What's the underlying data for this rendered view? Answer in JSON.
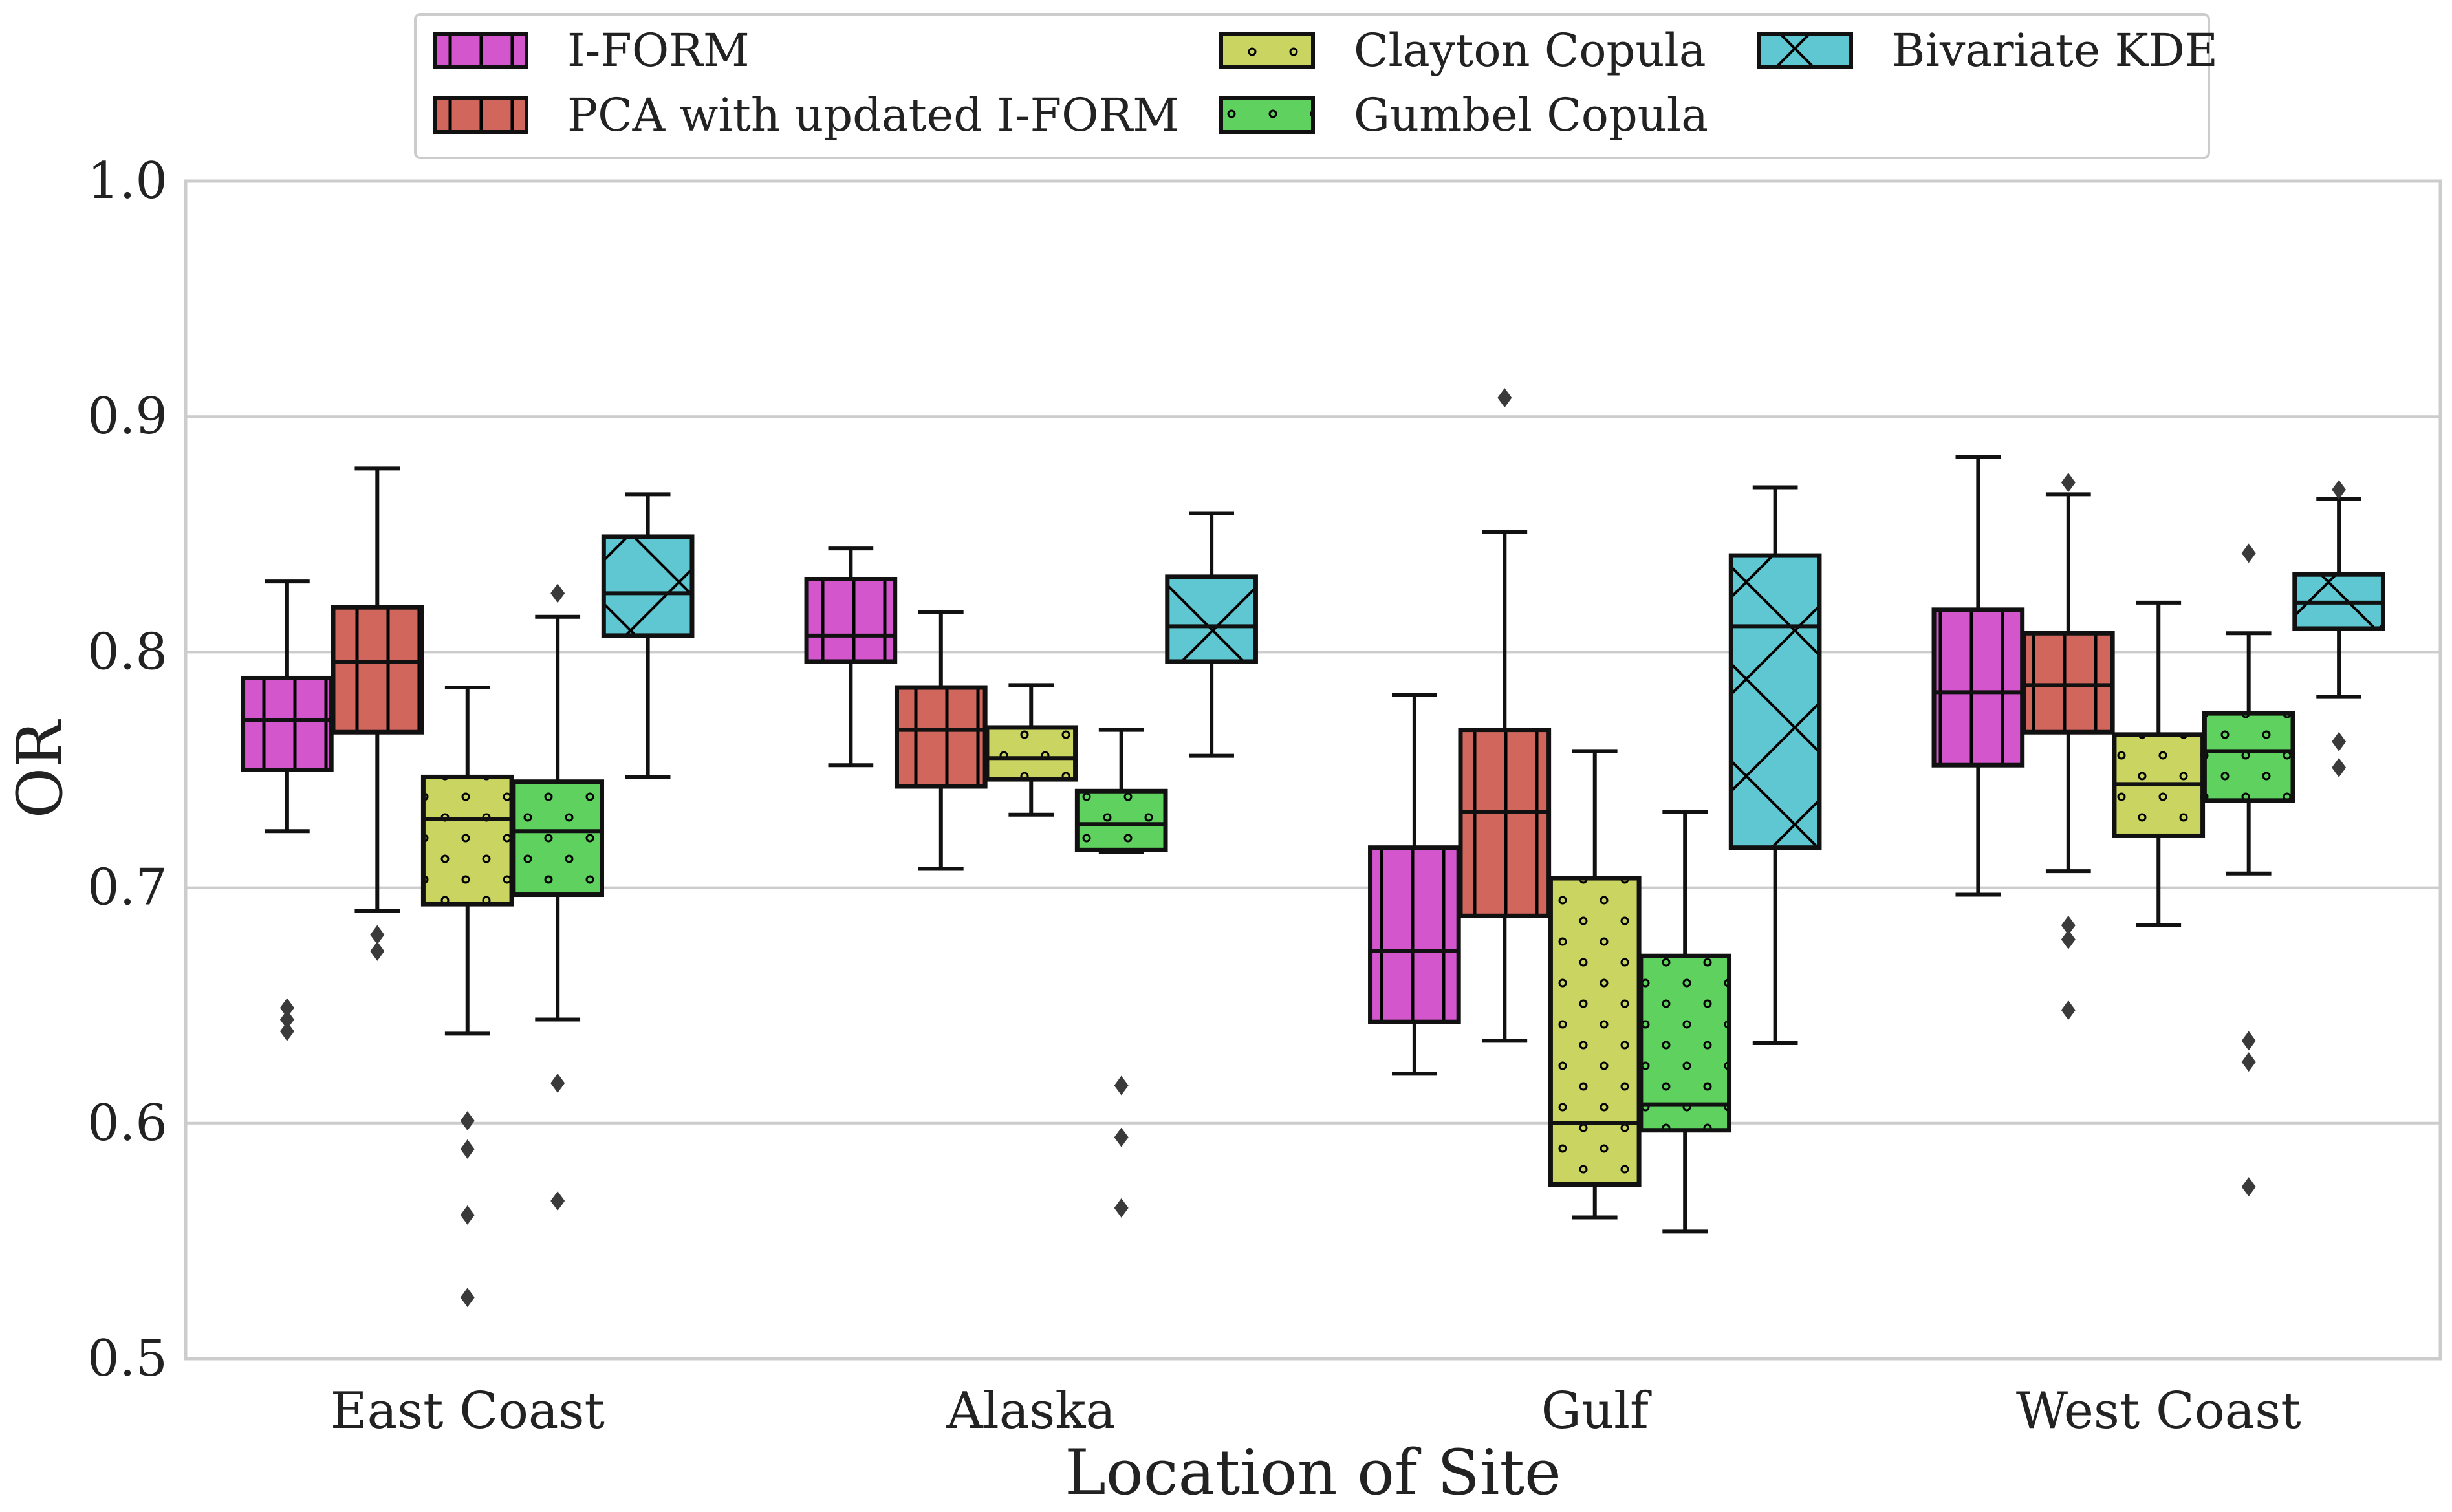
{
  "chart_data": {
    "type": "box",
    "title": "",
    "xlabel": "Location of Site",
    "ylabel": "OR",
    "ylim": [
      0.5,
      1.0
    ],
    "yticks": [
      "0.5",
      "0.6",
      "0.7",
      "0.8",
      "0.9",
      "1.0"
    ],
    "categories": [
      "East Coast",
      "Alaska",
      "Gulf",
      "West Coast"
    ],
    "grid": "horizontal",
    "legend_position": "top-center",
    "series": [
      {
        "name": "I-FORM",
        "color": "#d456cc",
        "hatch": "vertical-lines",
        "boxes": [
          {
            "whislo": 0.724,
            "q1": 0.75,
            "med": 0.771,
            "q3": 0.789,
            "whishi": 0.83,
            "fliers": [
              0.649,
              0.644,
              0.639
            ]
          },
          {
            "whislo": 0.752,
            "q1": 0.796,
            "med": 0.807,
            "q3": 0.831,
            "whishi": 0.844,
            "fliers": []
          },
          {
            "whislo": 0.621,
            "q1": 0.643,
            "med": 0.673,
            "q3": 0.717,
            "whishi": 0.782,
            "fliers": []
          },
          {
            "whislo": 0.697,
            "q1": 0.752,
            "med": 0.783,
            "q3": 0.818,
            "whishi": 0.883,
            "fliers": []
          }
        ]
      },
      {
        "name": "PCA with updated I-FORM",
        "color": "#d0665c",
        "hatch": "vertical-lines",
        "boxes": [
          {
            "whislo": 0.69,
            "q1": 0.766,
            "med": 0.796,
            "q3": 0.819,
            "whishi": 0.878,
            "fliers": [
              0.68,
              0.673
            ]
          },
          {
            "whislo": 0.708,
            "q1": 0.743,
            "med": 0.767,
            "q3": 0.785,
            "whishi": 0.817,
            "fliers": []
          },
          {
            "whislo": 0.635,
            "q1": 0.688,
            "med": 0.732,
            "q3": 0.767,
            "whishi": 0.851,
            "fliers": [
              0.908
            ]
          },
          {
            "whislo": 0.707,
            "q1": 0.766,
            "med": 0.786,
            "q3": 0.808,
            "whishi": 0.867,
            "fliers": [
              0.872,
              0.684,
              0.678,
              0.648
            ]
          }
        ]
      },
      {
        "name": "Clayton Copula",
        "color": "#c9d461",
        "hatch": "dots",
        "boxes": [
          {
            "whislo": 0.638,
            "q1": 0.693,
            "med": 0.729,
            "q3": 0.747,
            "whishi": 0.785,
            "fliers": [
              0.601,
              0.589,
              0.561,
              0.526
            ]
          },
          {
            "whislo": 0.731,
            "q1": 0.746,
            "med": 0.755,
            "q3": 0.768,
            "whishi": 0.786,
            "fliers": []
          },
          {
            "whislo": 0.56,
            "q1": 0.574,
            "med": 0.6,
            "q3": 0.704,
            "whishi": 0.758,
            "fliers": []
          },
          {
            "whislo": 0.684,
            "q1": 0.722,
            "med": 0.744,
            "q3": 0.765,
            "whishi": 0.821,
            "fliers": []
          }
        ]
      },
      {
        "name": "Gumbel Copula",
        "color": "#5ed15e",
        "hatch": "dots",
        "boxes": [
          {
            "whislo": 0.644,
            "q1": 0.697,
            "med": 0.724,
            "q3": 0.745,
            "whishi": 0.815,
            "fliers": [
              0.825,
              0.617,
              0.567
            ]
          },
          {
            "whislo": 0.715,
            "q1": 0.716,
            "med": 0.727,
            "q3": 0.741,
            "whishi": 0.767,
            "fliers": [
              0.616,
              0.594,
              0.564
            ]
          },
          {
            "whislo": 0.554,
            "q1": 0.597,
            "med": 0.608,
            "q3": 0.671,
            "whishi": 0.732,
            "fliers": []
          },
          {
            "whislo": 0.706,
            "q1": 0.737,
            "med": 0.758,
            "q3": 0.774,
            "whishi": 0.808,
            "fliers": [
              0.842,
              0.635,
              0.626,
              0.573
            ]
          }
        ]
      },
      {
        "name": "Bivariate KDE",
        "color": "#5ec7d1",
        "hatch": "x-cross",
        "boxes": [
          {
            "whislo": 0.747,
            "q1": 0.807,
            "med": 0.825,
            "q3": 0.849,
            "whishi": 0.867,
            "fliers": []
          },
          {
            "whislo": 0.756,
            "q1": 0.796,
            "med": 0.811,
            "q3": 0.832,
            "whishi": 0.859,
            "fliers": []
          },
          {
            "whislo": 0.634,
            "q1": 0.717,
            "med": 0.811,
            "q3": 0.841,
            "whishi": 0.87,
            "fliers": []
          },
          {
            "whislo": 0.781,
            "q1": 0.81,
            "med": 0.821,
            "q3": 0.833,
            "whishi": 0.865,
            "fliers": [
              0.869,
              0.762,
              0.751
            ]
          }
        ]
      }
    ]
  }
}
